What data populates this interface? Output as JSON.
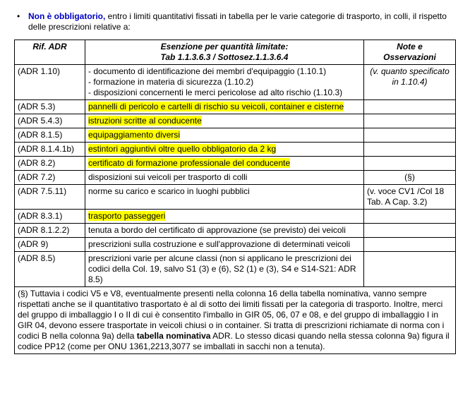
{
  "intro": {
    "label": "Non è obbligatorio,",
    "rest": " entro i limiti quantitativi fissati in tabella per le varie categorie di trasporto, in colli, il rispetto delle prescrizioni relative a:"
  },
  "headers": {
    "col1": "Rif. ADR",
    "col2_line1": "Esenzione per quantità limitate:",
    "col2_line2": "Tab 1.1.3.6.3 / Sottosez.1.1.3.6.4",
    "col3_line1": "Note e",
    "col3_line2": "Osservazioni"
  },
  "rows": [
    {
      "ref": "(ADR 1.10)",
      "ex_lines": [
        "- documento di identificazione dei membri d'equipaggio (1.10.1)",
        "- formazione in materia di sicurezza (1.10.2)",
        "- disposizioni concernenti le merci pericolose ad alto rischio (1.10.3)"
      ],
      "hl": false,
      "note": "(v. quanto specificato in 1.10.4)",
      "note_italic": true
    },
    {
      "ref": "(ADR 5.3)",
      "ex": "pannelli di pericolo e cartelli di rischio su veicoli, container e cisterne",
      "hl": true,
      "note": ""
    },
    {
      "ref": "(ADR 5.4.3)",
      "ex": "istruzioni scritte al conducente",
      "hl": true,
      "note": ""
    },
    {
      "ref": "(ADR 8.1.5)",
      "ex": "equipaggiamento diversi",
      "hl": true,
      "note": ""
    },
    {
      "ref": "(ADR 8.1.4.1b)",
      "ex": "estintori aggiuntivi oltre quello obbligatorio da 2 kg",
      "hl": true,
      "note": ""
    },
    {
      "ref": "(ADR 8.2)",
      "ex": "certificato di formazione professionale del conducente",
      "hl": true,
      "note": ""
    },
    {
      "ref": "(ADR 7.2)",
      "ex": "disposizioni sui veicoli per trasporto di colli",
      "hl": false,
      "note": "(§)"
    },
    {
      "ref": "(ADR 7.5.11)",
      "ex": "norme su carico e scarico in luoghi pubblici",
      "hl": false,
      "note": "(v. voce CV1 /Col 18 Tab. A Cap. 3.2)",
      "note_left": true
    },
    {
      "ref": "(ADR 8.3.1)",
      "ex": "trasporto passeggeri",
      "hl": true,
      "note": ""
    },
    {
      "ref": "(ADR 8.1.2.2)",
      "ex": "tenuta a bordo del certificato di approvazione (se previsto) dei veicoli",
      "hl": false,
      "note": ""
    },
    {
      "ref": "(ADR 9)",
      "ex": "prescrizioni sulla costruzione e sull'approvazione di determinati veicoli",
      "hl": false,
      "note": ""
    },
    {
      "ref": "(ADR 8.5)",
      "ex": "prescrizioni varie per alcune classi (non si applicano le prescrizioni dei codici della Col. 19, salvo S1 (3) e (6), S2 (1) e (3), S4 e S14-S21: ADR 8.5)",
      "hl": false,
      "note": ""
    }
  ],
  "footnote": {
    "pre": "(§) Tuttavia i codici V5 e V8, eventualmente presenti nella colonna 16 della tabella nominativa, vanno sempre rispettati anche se il quantitativo trasportato è al di sotto dei limiti fissati per la categoria di trasporto. Inoltre, merci del gruppo di imballaggio I o II di cui è consentito l'imballo in GIR 05, 06, 07 e 08, e del gruppo di imballaggio I in GIR 04, devono essere trasportate in veicoli chiusi o in container. Si tratta di prescrizioni richiamate di norma con i codici B nella colonna 9a) della ",
    "bold": "tabella nominativa",
    "post": " ADR. Lo stesso dicasi quando nella stessa colonna 9a) figura il codice PP12 (come per ONU 1361,2213,3077 se imballati in sacchi non a tenuta)."
  },
  "style": {
    "highlight_color": "#ffff00",
    "link_color": "#0000c0"
  }
}
